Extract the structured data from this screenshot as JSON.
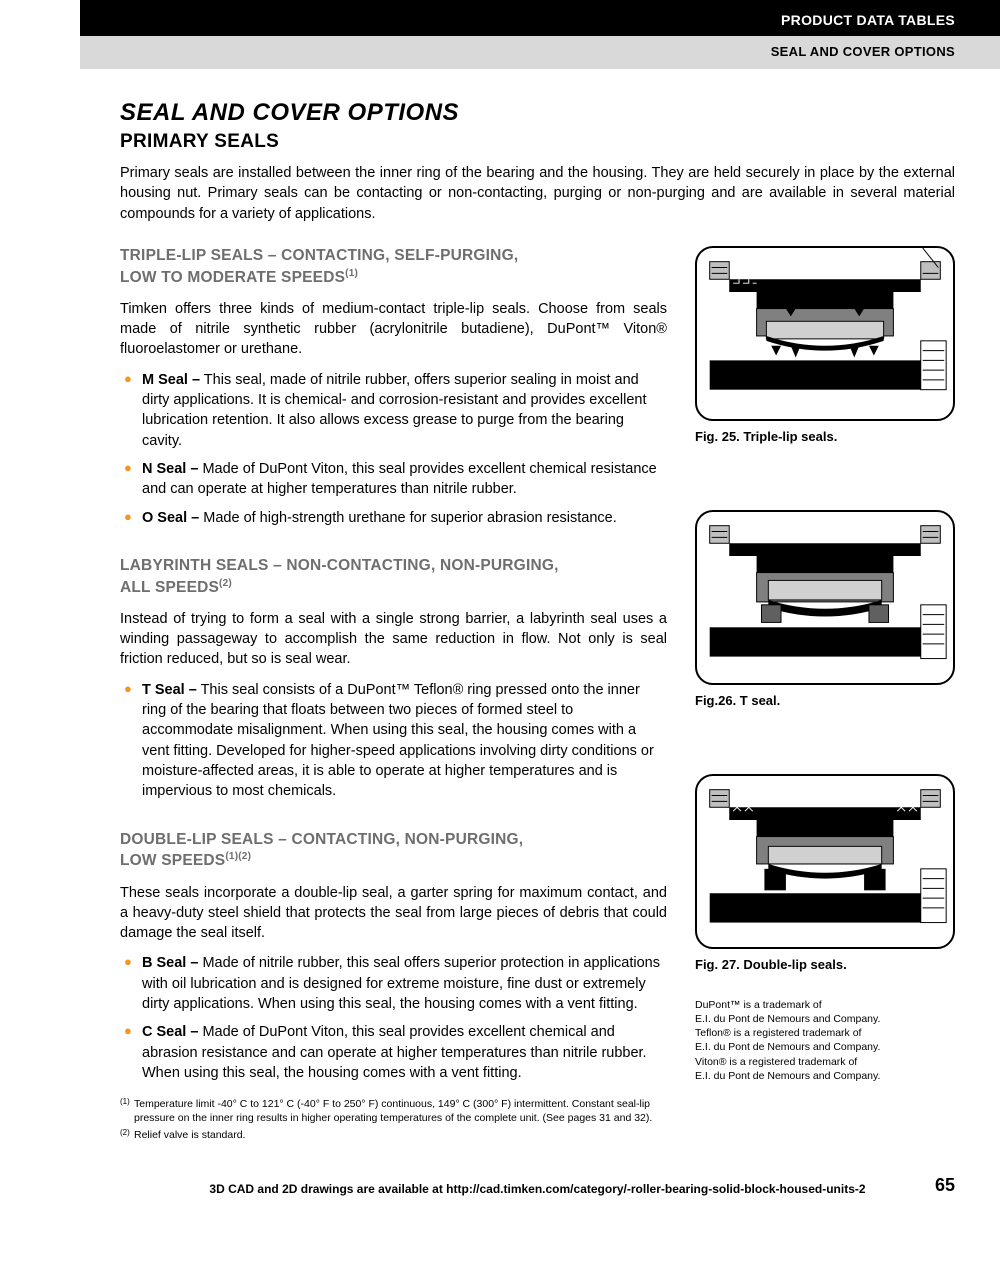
{
  "header": {
    "black": "PRODUCT DATA TABLES",
    "gray": "SEAL AND COVER OPTIONS"
  },
  "title": "SEAL AND COVER OPTIONS",
  "subtitle": "PRIMARY SEALS",
  "intro": "Primary seals are installed between the inner ring of the bearing and the housing. They are held securely in place by the external housing nut. Primary seals can be contacting or non-contacting, purging or non-purging and are available in several material compounds for a variety of applications.",
  "sections": [
    {
      "heading_line1": "TRIPLE-LIP SEALS – CONTACTING, SELF-PURGING,",
      "heading_line2": "LOW TO MODERATE SPEEDS",
      "heading_sup": "(1)",
      "para": "Timken offers three kinds of medium-contact triple-lip seals. Choose from seals made of nitrile synthetic rubber (acrylonitrile butadiene), DuPont™ Viton® fluoroelastomer or urethane.",
      "bullets": [
        {
          "label": "M Seal –",
          "text": " This seal, made of nitrile rubber, offers superior sealing in moist and dirty applications. It is chemical- and corrosion-resistant and provides excellent lubrication retention. It also allows excess grease to purge from the bearing cavity."
        },
        {
          "label": "N Seal –",
          "text": " Made of DuPont Viton, this seal provides excellent chemical resistance and can operate at higher temperatures than nitrile rubber."
        },
        {
          "label": "O Seal –",
          "text": " Made of high-strength urethane for superior abrasion resistance."
        }
      ],
      "fig_caption": "Fig. 25. Triple-lip seals."
    },
    {
      "heading_line1": "LABYRINTH SEALS – NON-CONTACTING, NON-PURGING,",
      "heading_line2": "ALL SPEEDS",
      "heading_sup": "(2)",
      "para": "Instead of trying to form a seal with a single strong barrier, a labyrinth seal uses a winding passageway to accomplish the same reduction in flow. Not only is seal friction reduced, but so is seal wear.",
      "bullets": [
        {
          "label": "T Seal –",
          "text": " This seal consists of a DuPont™ Teflon® ring pressed onto the inner ring of the bearing that floats between two pieces of formed steel to accommodate misalignment. When using this seal, the housing comes with a vent fitting. Developed for higher-speed applications involving dirty conditions or moisture-affected areas, it is able to operate at higher temperatures and is impervious to most chemicals."
        }
      ],
      "fig_caption": "Fig.26. T seal."
    },
    {
      "heading_line1": "DOUBLE-LIP SEALS – CONTACTING, NON-PURGING,",
      "heading_line2": "LOW SPEEDS",
      "heading_sup": "(1)(2)",
      "para": "These seals incorporate a double-lip seal, a garter spring for maximum contact, and a heavy-duty steel shield that protects the seal from large pieces of debris that could damage the seal itself.",
      "bullets": [
        {
          "label": "B Seal –",
          "text": " Made of nitrile rubber, this seal offers superior protection in applications with oil lubrication and is designed for extreme moisture, fine dust or extremely dirty applications. When using this seal, the housing comes with a vent fitting."
        },
        {
          "label": "C Seal –",
          "text": " Made of DuPont Viton, this seal provides excellent chemical and abrasion resistance and can operate at higher temperatures than nitrile rubber. When using this seal, the housing comes with a vent fitting."
        }
      ],
      "fig_caption": "Fig. 27. Double-lip seals."
    }
  ],
  "footnotes": [
    {
      "sup": "(1)",
      "text": "Temperature limit -40° C to 121° C (-40° F to 250° F) continuous, 149° C (300° F) intermittent. Constant seal-lip pressure on the inner ring results in higher operating temperatures of the complete unit. (See pages 31 and 32)."
    },
    {
      "sup": "(2)",
      "text": "Relief valve is standard."
    }
  ],
  "trademark": "DuPont™ is a trademark of\nE.I. du Pont de Nemours and Company.\nTeflon® is a registered trademark of\nE.I. du Pont de Nemours and Company.\nViton® is a registered trademark of\nE.I. du Pont de Nemours and Company.",
  "footer": "3D CAD and 2D drawings are available at http://cad.timken.com/category/-roller-bearing-solid-block-housed-units-2",
  "page_num": "65",
  "colors": {
    "bullet": "#f7941d",
    "heading_gray": "#6e6e6e",
    "header_gray_bg": "#d9d9d9"
  }
}
